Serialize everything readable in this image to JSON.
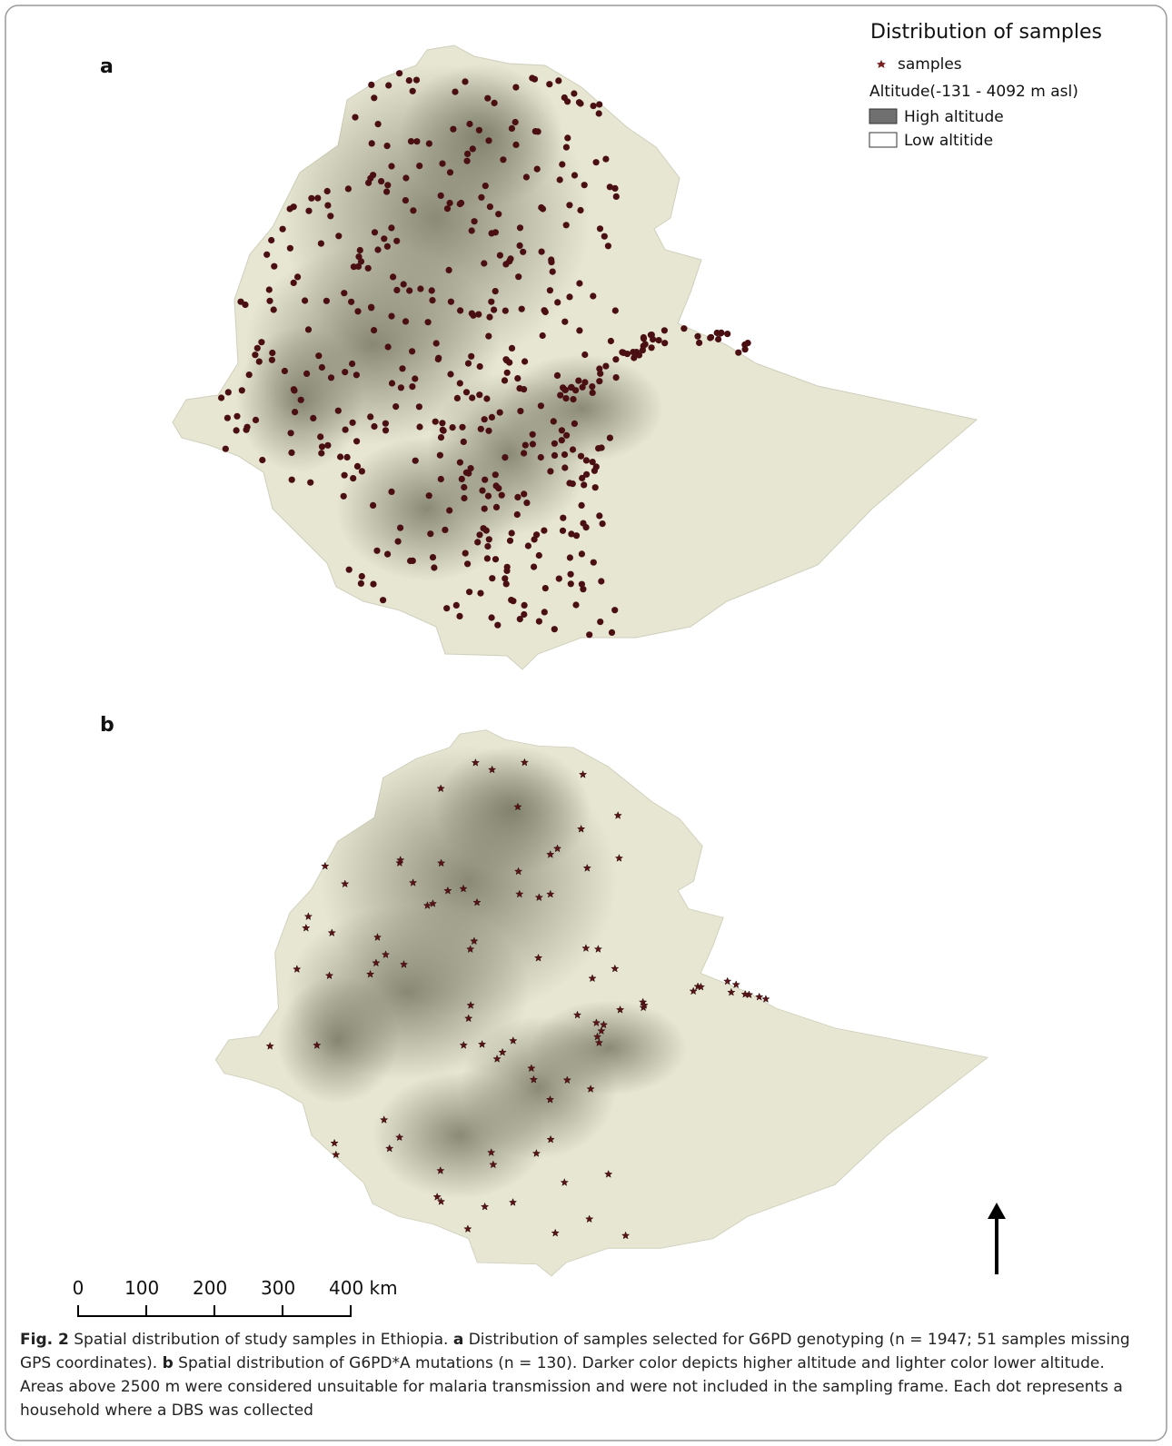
{
  "panels": [
    {
      "label": "a"
    },
    {
      "label": "b"
    }
  ],
  "legend": {
    "title": "Distribution of samples",
    "samples": "samples",
    "altitude": "Altitude(-131 - 4092 m asl)",
    "high": "High altitude",
    "low": "Low altitide"
  },
  "scale_bar": {
    "labels": [
      "0",
      "100",
      "200",
      "300",
      "400 km"
    ]
  },
  "caption": {
    "fig": "Fig. 2",
    "intro": "Spatial distribution of study samples in Ethiopia.",
    "a_label": "a",
    "a_text": "Distribution of samples selected for G6PD genotyping (n = 1947; 51 samples missing GPS coordinates).",
    "b_label": "b",
    "b_text": "Spatial distribution of G6PD*A mutations (n = 130). Darker color depicts higher altitude and lighter color lower altitude. Areas above 2500 m were considered unsuitable for malaria transmission and were not included in the sampling frame. Each dot represents a household where a DBS was collected"
  }
}
